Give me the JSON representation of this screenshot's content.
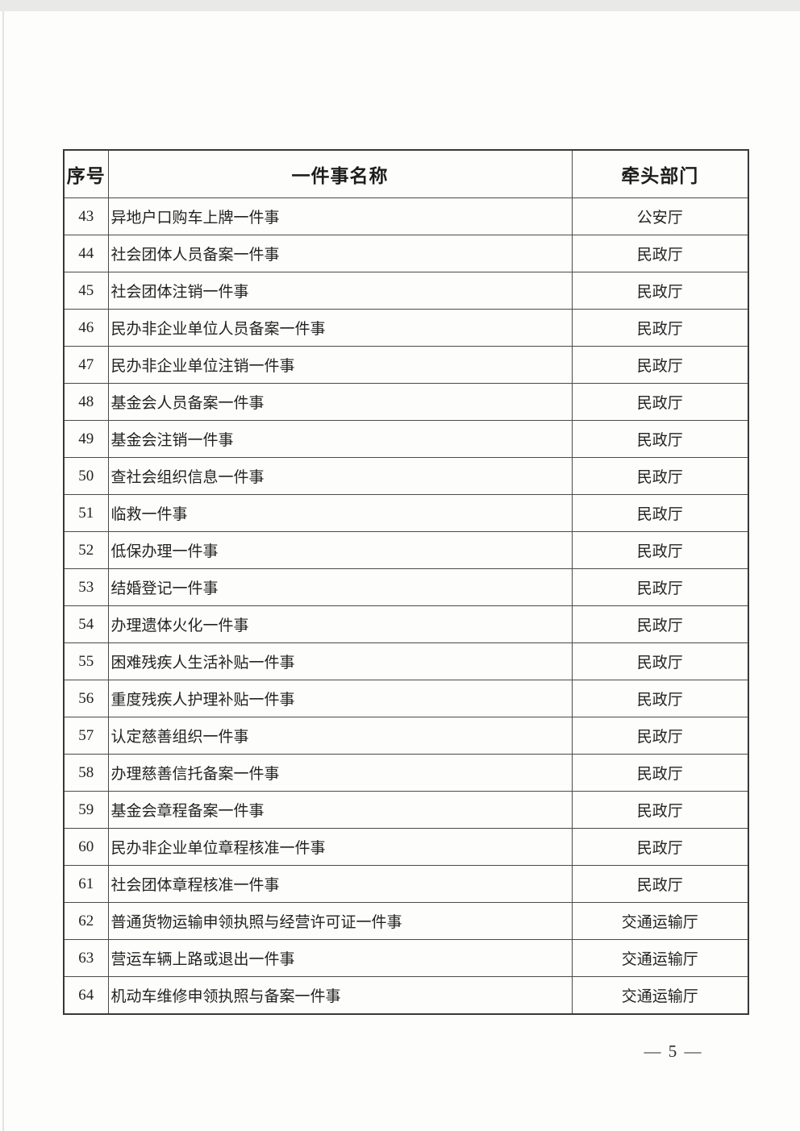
{
  "page": {
    "number_display": "— 5 —"
  },
  "table": {
    "headers": {
      "no": "序号",
      "name": "一件事名称",
      "dept": "牵头部门"
    },
    "rows": [
      {
        "no": "43",
        "name": "异地户口购车上牌一件事",
        "dept": "公安厅"
      },
      {
        "no": "44",
        "name": "社会团体人员备案一件事",
        "dept": "民政厅"
      },
      {
        "no": "45",
        "name": "社会团体注销一件事",
        "dept": "民政厅"
      },
      {
        "no": "46",
        "name": "民办非企业单位人员备案一件事",
        "dept": "民政厅"
      },
      {
        "no": "47",
        "name": "民办非企业单位注销一件事",
        "dept": "民政厅"
      },
      {
        "no": "48",
        "name": "基金会人员备案一件事",
        "dept": "民政厅"
      },
      {
        "no": "49",
        "name": "基金会注销一件事",
        "dept": "民政厅"
      },
      {
        "no": "50",
        "name": "查社会组织信息一件事",
        "dept": "民政厅"
      },
      {
        "no": "51",
        "name": "临救一件事",
        "dept": "民政厅"
      },
      {
        "no": "52",
        "name": "低保办理一件事",
        "dept": "民政厅"
      },
      {
        "no": "53",
        "name": "结婚登记一件事",
        "dept": "民政厅"
      },
      {
        "no": "54",
        "name": "办理遗体火化一件事",
        "dept": "民政厅"
      },
      {
        "no": "55",
        "name": "困难残疾人生活补贴一件事",
        "dept": "民政厅"
      },
      {
        "no": "56",
        "name": "重度残疾人护理补贴一件事",
        "dept": "民政厅"
      },
      {
        "no": "57",
        "name": "认定慈善组织一件事",
        "dept": "民政厅"
      },
      {
        "no": "58",
        "name": "办理慈善信托备案一件事",
        "dept": "民政厅"
      },
      {
        "no": "59",
        "name": "基金会章程备案一件事",
        "dept": "民政厅"
      },
      {
        "no": "60",
        "name": "民办非企业单位章程核准一件事",
        "dept": "民政厅"
      },
      {
        "no": "61",
        "name": "社会团体章程核准一件事",
        "dept": "民政厅"
      },
      {
        "no": "62",
        "name": "普通货物运输申领执照与经营许可证一件事",
        "dept": "交通运输厅"
      },
      {
        "no": "63",
        "name": "营运车辆上路或退出一件事",
        "dept": "交通运输厅"
      },
      {
        "no": "64",
        "name": "机动车维修申领执照与备案一件事",
        "dept": "交通运输厅"
      }
    ]
  }
}
